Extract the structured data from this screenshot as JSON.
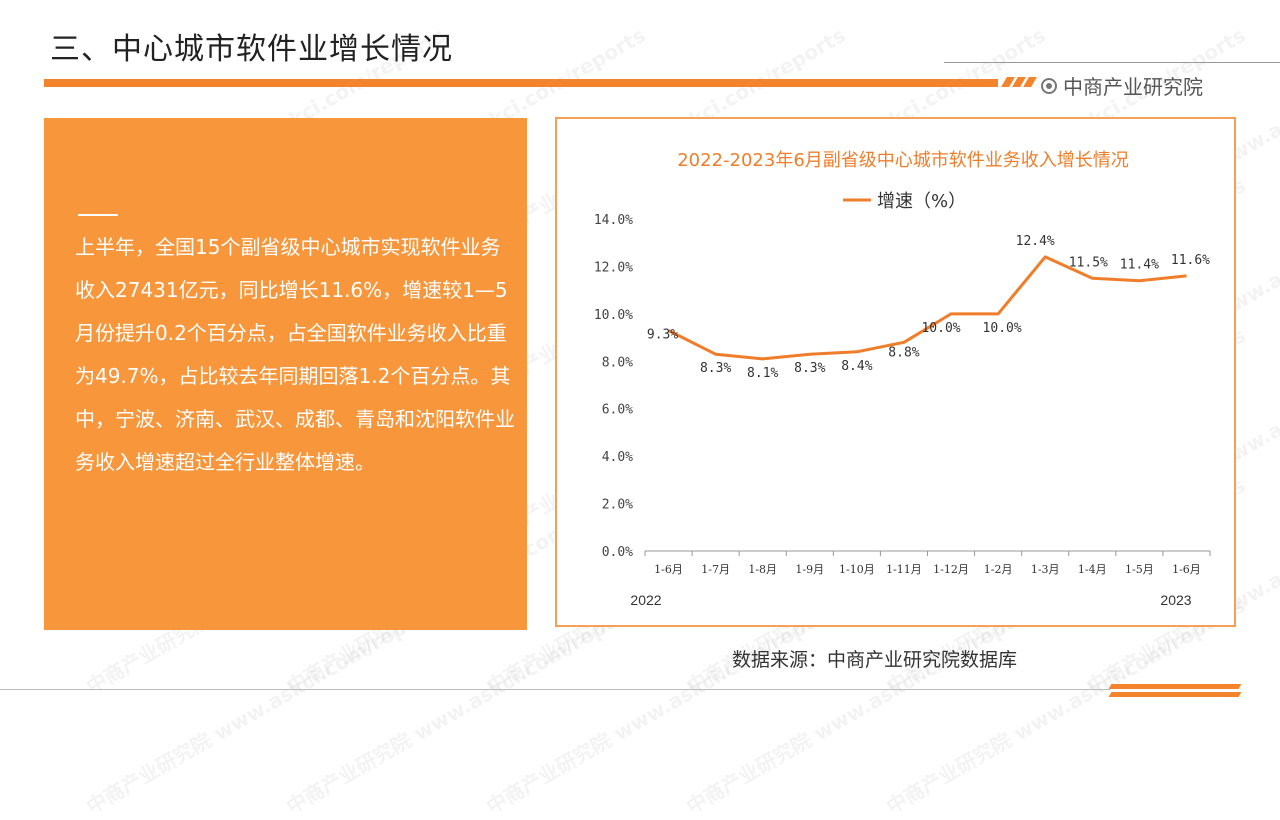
{
  "header": {
    "title": "三、中心城市软件业增长情况",
    "brand": "中商产业研究院"
  },
  "panel": {
    "text": "上半年，全国15个副省级中心城市实现软件业务收入27431亿元，同比增长11.6%，增速较1—5月份提升0.2个百分点，占全国软件业务收入比重为49.7%，占比较去年同期回落1.2个百分点。其中，宁波、济南、武汉、成都、青岛和沈阳软件业务收入增速超过全行业整体增速。"
  },
  "source": "数据来源：中商产业研究院数据库",
  "watermark": "中商产业研究院 www.askci.com/reports",
  "colors": {
    "accent": "#f4842b",
    "panel": "#f8963c",
    "line": "#f07d2a"
  },
  "chart_data": {
    "type": "line",
    "title": "2022-2023年6月副省级中心城市软件业务收入增长情况",
    "categories": [
      "1-6月",
      "1-7月",
      "1-8月",
      "1-9月",
      "1-10月",
      "1-11月",
      "1-12月",
      "1-2月",
      "1-3月",
      "1-4月",
      "1-5月",
      "1-6月"
    ],
    "series": [
      {
        "name": "增速（%）",
        "values": [
          9.3,
          8.3,
          8.1,
          8.3,
          8.4,
          8.8,
          10.0,
          10.0,
          12.4,
          11.5,
          11.4,
          11.6
        ],
        "labels": [
          "9.3%",
          "8.3%",
          "8.1%",
          "8.3%",
          "8.4%",
          "8.8%",
          "10.0%",
          "10.0%",
          "12.4%",
          "11.5%",
          "11.4%",
          "11.6%"
        ]
      }
    ],
    "yticks": [
      "0.0%",
      "2.0%",
      "4.0%",
      "6.0%",
      "8.0%",
      "10.0%",
      "12.0%",
      "14.0%"
    ],
    "ylim": [
      0,
      14
    ],
    "year_labels": [
      "2022",
      "2023"
    ],
    "legend_position": "top-center",
    "grid": false
  }
}
